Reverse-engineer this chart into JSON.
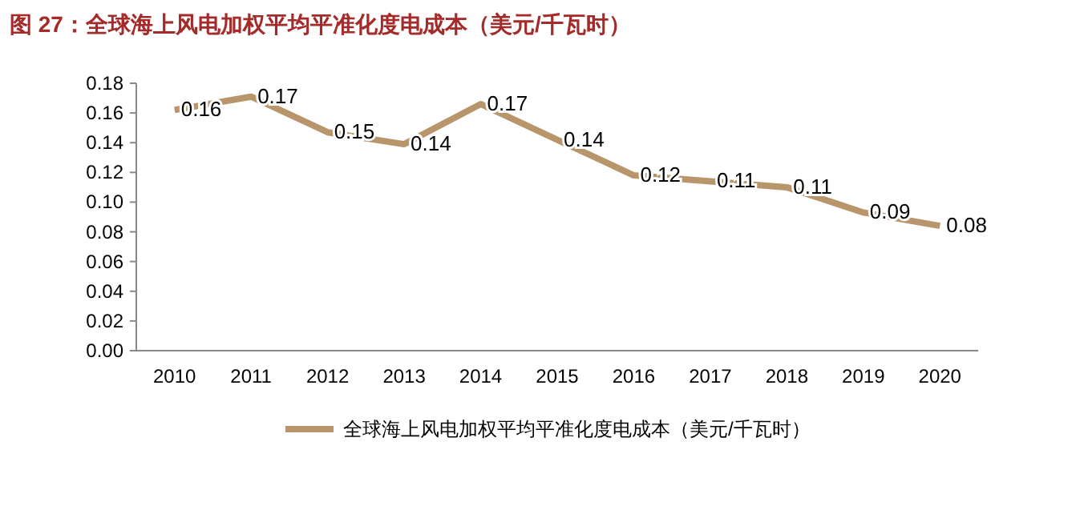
{
  "chart_data": {
    "type": "line",
    "title": "图 27：全球海上风电加权平均平准化度电成本（美元/千瓦时）",
    "categories": [
      "2010",
      "2011",
      "2012",
      "2013",
      "2014",
      "2015",
      "2016",
      "2017",
      "2018",
      "2019",
      "2020"
    ],
    "series": [
      {
        "name": "全球海上风电加权平均平准化度电成本（美元/千瓦时）",
        "color": "#b8956a",
        "values": [
          0.162,
          0.171,
          0.147,
          0.139,
          0.166,
          0.142,
          0.118,
          0.114,
          0.11,
          0.093,
          0.084
        ],
        "value_labels": [
          "0.16",
          "0.17",
          "0.15",
          "0.14",
          "0.17",
          "0.14",
          "0.12",
          "0.11",
          "0.11",
          "0.09",
          "0.08"
        ]
      }
    ],
    "ylim": [
      0,
      0.18
    ],
    "yticks": [
      {
        "value": 0,
        "label": "0.00"
      },
      {
        "value": 0.02,
        "label": "0.02"
      },
      {
        "value": 0.04,
        "label": "0.04"
      },
      {
        "value": 0.06,
        "label": "0.06"
      },
      {
        "value": 0.08,
        "label": "0.08"
      },
      {
        "value": 0.1,
        "label": "0.10"
      },
      {
        "value": 0.12,
        "label": "0.12"
      },
      {
        "value": 0.14,
        "label": "0.14"
      },
      {
        "value": 0.16,
        "label": "0.16"
      },
      {
        "value": 0.18,
        "label": "0.18"
      }
    ],
    "legend": "bottom",
    "grid": false,
    "marker": "none",
    "line_style": "solid"
  }
}
